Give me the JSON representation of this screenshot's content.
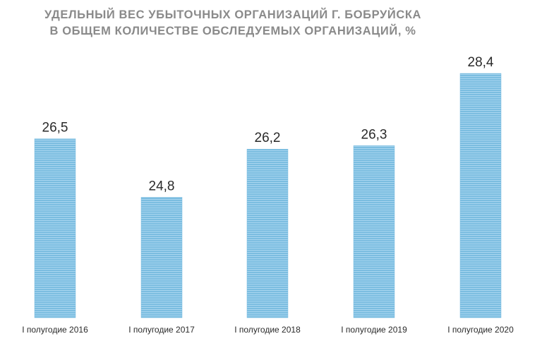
{
  "chart_data": {
    "type": "bar",
    "title_lines": [
      "УДЕЛЬНЫЙ ВЕС УБЫТОЧНЫХ ОРГАНИЗАЦИЙ Г. БОБРУЙСКА",
      "В ОБЩЕМ КОЛИЧЕСТВЕ ОБСЛЕДУЕМЫХ ОРГАНИЗАЦИЙ, %"
    ],
    "categories": [
      "I полугодие 2016",
      "I полугодие 2017",
      "I полугодие 2018",
      "I полугодие 2019",
      "I полугодие 2020"
    ],
    "values": [
      26.5,
      24.8,
      26.2,
      26.3,
      28.4
    ],
    "value_labels": [
      "26,5",
      "24,8",
      "26,2",
      "26,3",
      "28,4"
    ],
    "xlabel": "",
    "ylabel": "",
    "ylim": [
      21.3,
      28.4
    ],
    "grid": false,
    "legend": "none",
    "bar_color": "#7bbde0",
    "bar_stripe_color": "#a9d6f0"
  }
}
